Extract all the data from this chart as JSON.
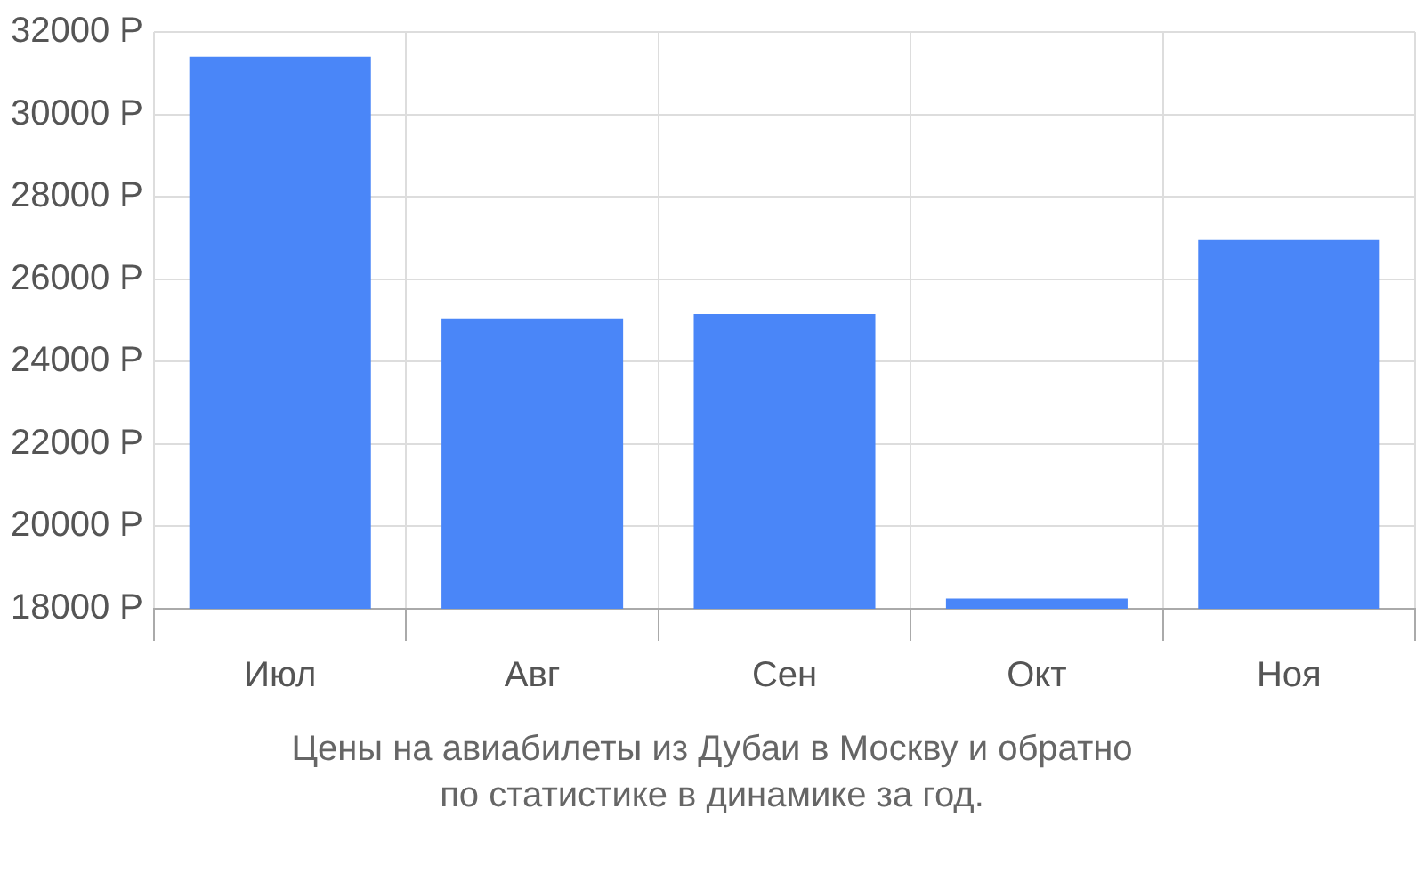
{
  "chart_data": {
    "type": "bar",
    "categories": [
      "Июл",
      "Авг",
      "Сен",
      "Окт",
      "Ноя"
    ],
    "values": [
      31400,
      25050,
      25150,
      18250,
      26950
    ],
    "color": "#4a86f8",
    "ylim": [
      18000,
      32000
    ],
    "yticks": [
      {
        "value": 18000,
        "label": "18000 Р"
      },
      {
        "value": 20000,
        "label": "20000 Р"
      },
      {
        "value": 22000,
        "label": "22000 Р"
      },
      {
        "value": 24000,
        "label": "24000 Р"
      },
      {
        "value": 26000,
        "label": "26000 Р"
      },
      {
        "value": 28000,
        "label": "28000 Р"
      },
      {
        "value": 30000,
        "label": "30000 Р"
      },
      {
        "value": 32000,
        "label": "32000 Р"
      }
    ],
    "grid": true,
    "legend": false,
    "annotations": [
      "Цены на авиабилеты из Дубаи в Москву и обратно",
      "по статистике в динамике за год."
    ]
  }
}
